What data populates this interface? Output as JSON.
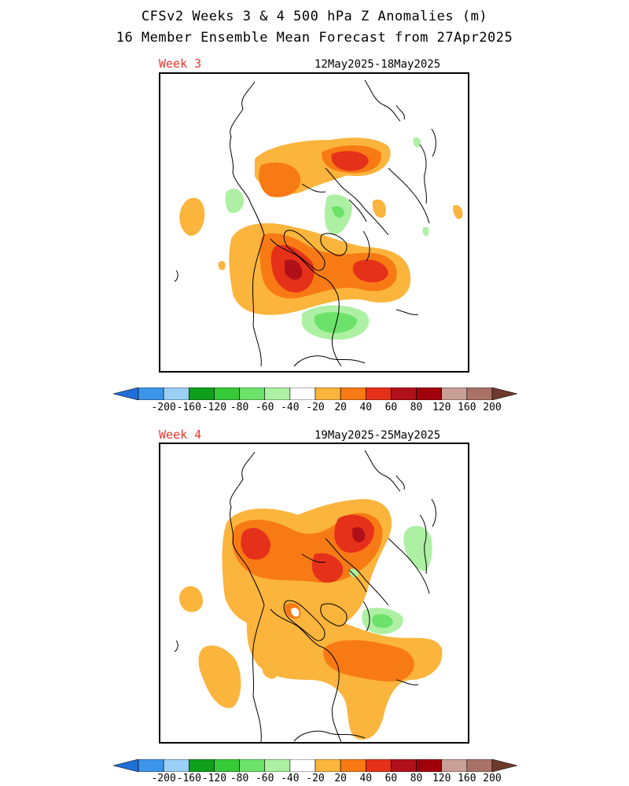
{
  "header": {
    "title_line1": "CFSv2 Weeks 3 & 4 500 hPa Z Anomalies (m)",
    "title_line2": "16 Member Ensemble Mean Forecast from 27Apr2025"
  },
  "panels": [
    {
      "week_label": "Week 3",
      "date_range": "12May2025-18May2025"
    },
    {
      "week_label": "Week 4",
      "date_range": "19May2025-25May2025"
    }
  ],
  "colorbar": {
    "tick_labels": [
      "-200",
      "-160",
      "-120",
      "-80",
      "-60",
      "-40",
      "-20",
      "20",
      "40",
      "60",
      "80",
      "120",
      "160",
      "200"
    ],
    "colors": [
      "#1f6fd9",
      "#3c95ea",
      "#9ccff5",
      "#0f9f1c",
      "#36c938",
      "#6ce26a",
      "#adf0a3",
      "#ffffff",
      "#fbb43c",
      "#f87a14",
      "#e5311a",
      "#b0101a",
      "#a0000b",
      "#c8a096",
      "#a87266",
      "#6e3a2c"
    ]
  },
  "colors": {
    "pos_20": "#fbb43c",
    "pos_40": "#f87a14",
    "pos_60": "#e5311a",
    "pos_80": "#b0101a",
    "neg_20": "#adf0a3",
    "neg_40": "#6ce26a",
    "coastline": "#000000",
    "week_label": "#e8372c"
  }
}
